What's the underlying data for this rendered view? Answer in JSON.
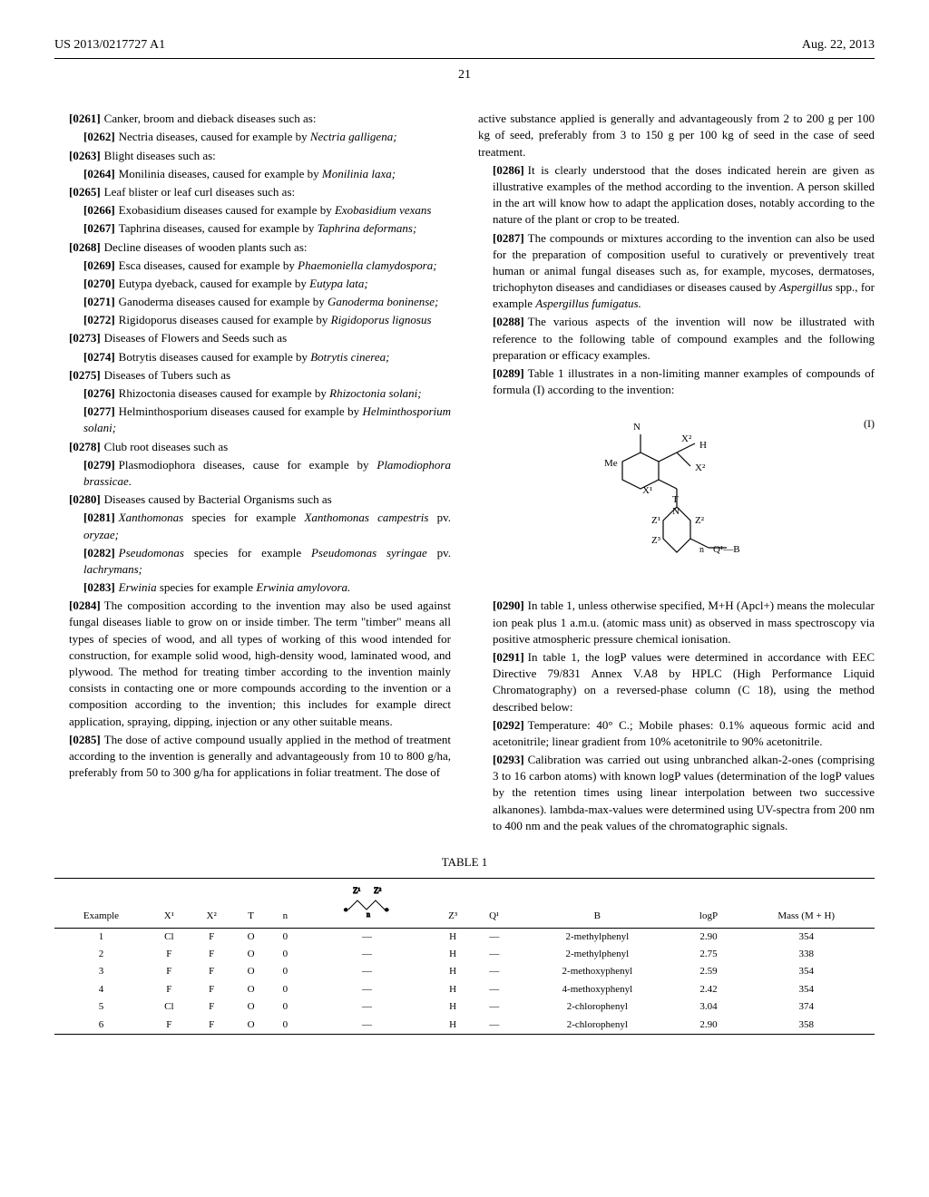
{
  "header": {
    "patent_number": "US 2013/0217727 A1",
    "date": "Aug. 22, 2013",
    "page": "21"
  },
  "left_column": [
    {
      "num": "[0261]",
      "indent": 1,
      "text": "Canker, broom and dieback diseases such as:"
    },
    {
      "num": "[0262]",
      "indent": 2,
      "text": "Nectria diseases, caused for example by ",
      "italic": "Nectria galligena;"
    },
    {
      "num": "[0263]",
      "indent": 1,
      "text": "Blight diseases such as:"
    },
    {
      "num": "[0264]",
      "indent": 2,
      "text": "Monilinia diseases, caused for example by ",
      "italic": "Monilinia laxa;"
    },
    {
      "num": "[0265]",
      "indent": 1,
      "text": "Leaf blister or leaf curl diseases such as:"
    },
    {
      "num": "[0266]",
      "indent": 2,
      "text": "Exobasidium diseases caused for example by ",
      "italic": "Exobasidium vexans"
    },
    {
      "num": "[0267]",
      "indent": 2,
      "text": "Taphrina diseases, caused for example by ",
      "italic": "Taphrina deformans;"
    },
    {
      "num": "[0268]",
      "indent": 1,
      "text": "Decline diseases of wooden plants such as:"
    },
    {
      "num": "[0269]",
      "indent": 2,
      "text": "Esca diseases, caused for example by ",
      "italic": "Phaemoniella clamydospora;"
    },
    {
      "num": "[0270]",
      "indent": 2,
      "text": "Eutypa dyeback, caused for example by ",
      "italic": "Eutypa lata;"
    },
    {
      "num": "[0271]",
      "indent": 2,
      "text": "Ganoderma diseases caused for example by ",
      "italic": "Ganoderma boninense;"
    },
    {
      "num": "[0272]",
      "indent": 2,
      "text": "Rigidoporus diseases caused for example by ",
      "italic": "Rigidoporus lignosus"
    },
    {
      "num": "[0273]",
      "indent": 1,
      "text": "Diseases of Flowers and Seeds such as"
    },
    {
      "num": "[0274]",
      "indent": 2,
      "text": "Botrytis diseases caused for example by ",
      "italic": "Botrytis cinerea;"
    },
    {
      "num": "[0275]",
      "indent": 1,
      "text": "Diseases of Tubers such as"
    },
    {
      "num": "[0276]",
      "indent": 2,
      "text": "Rhizoctonia diseases caused for example by ",
      "italic": "Rhizoctonia solani;"
    },
    {
      "num": "[0277]",
      "indent": 2,
      "text": "Helminthosporium diseases caused for example by ",
      "italic": "Helminthosporium solani;"
    },
    {
      "num": "[0278]",
      "indent": 1,
      "text": "Club root diseases such as"
    },
    {
      "num": "[0279]",
      "indent": 2,
      "text": "Plasmodiophora diseases, cause for example by ",
      "italic": "Plamodiophora brassicae."
    },
    {
      "num": "[0280]",
      "indent": 1,
      "text": "Diseases caused by Bacterial Organisms such as"
    },
    {
      "num": "[0281]",
      "indent": 2,
      "text": "",
      "italic": "Xanthomonas",
      "text2": " species for example ",
      "italic2": "Xanthomonas campestris",
      "text3": " pv. ",
      "italic3": "oryzae;"
    },
    {
      "num": "[0282]",
      "indent": 2,
      "text": "",
      "italic": "Pseudomonas",
      "text2": " species for example ",
      "italic2": "Pseudomonas syringae",
      "text3": " pv. ",
      "italic3": "lachrymans;"
    },
    {
      "num": "[0283]",
      "indent": 2,
      "text": "",
      "italic": "Erwinia",
      "text2": " species for example ",
      "italic2": "Erwinia amylovora."
    },
    {
      "num": "[0284]",
      "indent": 1,
      "text": "The composition according to the invention may also be used against fungal diseases liable to grow on or inside timber. The term \"timber\" means all types of species of wood, and all types of working of this wood intended for construction, for example solid wood, high-density wood, laminated wood, and plywood. The method for treating timber according to the invention mainly consists in contacting one or more compounds according to the invention or a composition according to the invention; this includes for example direct application, spraying, dipping, injection or any other suitable means."
    },
    {
      "num": "[0285]",
      "indent": 1,
      "text": "The dose of active compound usually applied in the method of treatment according to the invention is generally and advantageously from 10 to 800 g/ha, preferably from 50 to 300 g/ha for applications in foliar treatment. The dose of"
    }
  ],
  "right_column": [
    {
      "num": "",
      "indent": 0,
      "text": "active substance applied is generally and advantageously from 2 to 200 g per 100 kg of seed, preferably from 3 to 150 g per 100 kg of seed in the case of seed treatment."
    },
    {
      "num": "[0286]",
      "indent": 1,
      "text": "It is clearly understood that the doses indicated herein are given as illustrative examples of the method according to the invention. A person skilled in the art will know how to adapt the application doses, notably according to the nature of the plant or crop to be treated."
    },
    {
      "num": "[0287]",
      "indent": 1,
      "text": "The compounds or mixtures according to the invention can also be used for the preparation of composition useful to curatively or preventively treat human or animal fungal diseases such as, for example, mycoses, dermatoses, trichophyton diseases and candidiases or diseases caused by ",
      "italic": "Aspergillus",
      "text2": " spp., for example ",
      "italic2": "Aspergillus fumigatus."
    },
    {
      "num": "[0288]",
      "indent": 1,
      "text": "The various aspects of the invention will now be illustrated with reference to the following table of compound examples and the following preparation or efficacy examples."
    },
    {
      "num": "[0289]",
      "indent": 1,
      "text": "Table 1 illustrates in a non-limiting manner examples of compounds of formula (I) according to the invention:"
    }
  ],
  "right_column_after": [
    {
      "num": "[0290]",
      "indent": 1,
      "text": "In table 1, unless otherwise specified, M+H (Apcl+) means the molecular ion peak plus 1 a.m.u. (atomic mass unit) as observed in mass spectroscopy via positive atmospheric pressure chemical ionisation."
    },
    {
      "num": "[0291]",
      "indent": 1,
      "text": "In table 1, the logP values were determined in accordance with EEC Directive 79/831 Annex V.A8 by HPLC (High Performance Liquid Chromatography) on a reversed-phase column (C 18), using the method described below:"
    },
    {
      "num": "[0292]",
      "indent": 1,
      "text": "Temperature: 40° C.; Mobile phases: 0.1% aqueous formic acid and acetonitrile; linear gradient from 10% acetonitrile to 90% acetonitrile."
    },
    {
      "num": "[0293]",
      "indent": 1,
      "text": "Calibration was carried out using unbranched alkan-2-ones (comprising 3 to 16 carbon atoms) with known logP values (determination of the logP values by the retention times using linear interpolation between two successive alkanones). lambda-max-values were determined using UV-spectra from 200 nm to 400 nm and the peak values of the chromatographic signals."
    }
  ],
  "formula_label": "(I)",
  "table": {
    "caption": "TABLE 1",
    "columns": [
      "Example",
      "X¹",
      "X²",
      "T",
      "n",
      "",
      "Z³",
      "Q¹",
      "B",
      "logP",
      "Mass (M + H)"
    ],
    "rows": [
      [
        "1",
        "Cl",
        "F",
        "O",
        "0",
        "—",
        "H",
        "—",
        "2-methylphenyl",
        "2.90",
        "354"
      ],
      [
        "2",
        "F",
        "F",
        "O",
        "0",
        "—",
        "H",
        "—",
        "2-methylphenyl",
        "2.75",
        "338"
      ],
      [
        "3",
        "F",
        "F",
        "O",
        "0",
        "—",
        "H",
        "—",
        "2-methoxyphenyl",
        "2.59",
        "354"
      ],
      [
        "4",
        "F",
        "F",
        "O",
        "0",
        "—",
        "H",
        "—",
        "4-methoxyphenyl",
        "2.42",
        "354"
      ],
      [
        "5",
        "Cl",
        "F",
        "O",
        "0",
        "—",
        "H",
        "—",
        "2-chlorophenyl",
        "3.04",
        "374"
      ],
      [
        "6",
        "F",
        "F",
        "O",
        "0",
        "—",
        "H",
        "—",
        "2-chlorophenyl",
        "2.90",
        "358"
      ]
    ]
  }
}
